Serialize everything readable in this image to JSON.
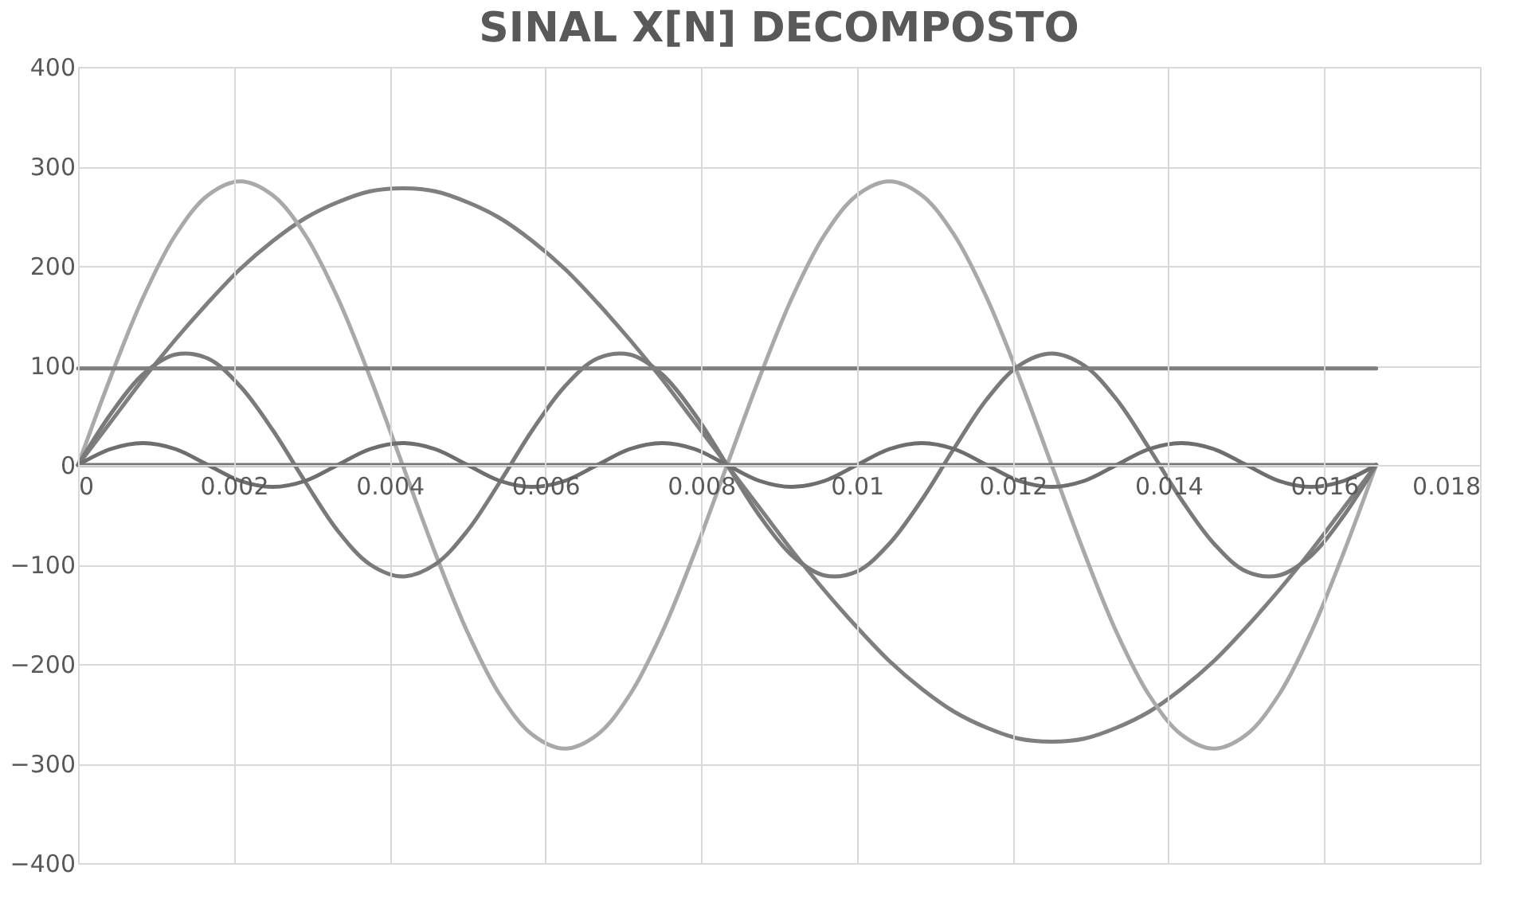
{
  "chart_data": {
    "type": "line",
    "title": "SINAL X[N] DECOMPOSTO",
    "x": [
      0,
      0.000417,
      0.000833,
      0.00125,
      0.001667,
      0.002083,
      0.0025,
      0.002917,
      0.003333,
      0.00375,
      0.004167,
      0.004583,
      0.005,
      0.005417,
      0.005833,
      0.00625,
      0.006667,
      0.007083,
      0.0075,
      0.007917,
      0.008333,
      0.00875,
      0.009167,
      0.009583,
      0.01,
      0.010417,
      0.010833,
      0.01125,
      0.011667,
      0.012083,
      0.0125,
      0.012917,
      0.013333,
      0.01375,
      0.014167,
      0.014583,
      0.015,
      0.015417,
      0.015833,
      0.01625,
      0.016667
    ],
    "series": [
      {
        "color": "#7f7f7f",
        "values": [
          0,
          43,
          86,
          126,
          163,
          197,
          225,
          248,
          264,
          275,
          278,
          275,
          264,
          248,
          225,
          197,
          163,
          126,
          86,
          43,
          0,
          -43,
          -86,
          -126,
          -163,
          -197,
          -225,
          -248,
          -264,
          -275,
          -278,
          -275,
          -264,
          -248,
          -225,
          -197,
          -163,
          -126,
          -86,
          -43,
          0
        ]
      },
      {
        "color": "#a9a9a9",
        "values": [
          0,
          88,
          168,
          231,
          271,
          285,
          271,
          231,
          168,
          88,
          0,
          -88,
          -168,
          -231,
          -271,
          -285,
          -271,
          -231,
          -168,
          -88,
          0,
          88,
          168,
          231,
          271,
          285,
          271,
          231,
          168,
          88,
          0,
          -88,
          -168,
          -231,
          -271,
          -285,
          -271,
          -231,
          -168,
          -88,
          0
        ]
      },
      {
        "color": "#7a7a7a",
        "values": [
          0,
          51,
          91,
          111,
          107,
          79,
          35,
          -17,
          -66,
          -100,
          -112,
          -100,
          -66,
          -17,
          35,
          79,
          107,
          111,
          91,
          51,
          0,
          -51,
          -91,
          -111,
          -107,
          -79,
          -35,
          17,
          66,
          100,
          112,
          100,
          66,
          17,
          -35,
          -79,
          -107,
          -111,
          -91,
          -51,
          0
        ]
      },
      {
        "color": "#6e6e6e",
        "values": [
          0,
          16,
          22,
          16,
          0,
          -16,
          -22,
          -16,
          0,
          16,
          22,
          16,
          0,
          -16,
          -22,
          -16,
          0,
          16,
          22,
          16,
          0,
          -16,
          -22,
          -16,
          0,
          16,
          22,
          16,
          0,
          -16,
          -22,
          -16,
          0,
          16,
          22,
          16,
          0,
          -16,
          -22,
          -16,
          0
        ]
      },
      {
        "color": "#7f7f7f",
        "values": [
          97,
          97,
          97,
          97,
          97,
          97,
          97,
          97,
          97,
          97,
          97,
          97,
          97,
          97,
          97,
          97,
          97,
          97,
          97,
          97,
          97,
          97,
          97,
          97,
          97,
          97,
          97,
          97,
          97,
          97,
          97,
          97,
          97,
          97,
          97,
          97,
          97,
          97,
          97,
          97,
          97
        ]
      },
      {
        "color": "#767676",
        "values": [
          0,
          0,
          0,
          0,
          0,
          0,
          0,
          0,
          0,
          0,
          0,
          0,
          0,
          0,
          0,
          0,
          0,
          0,
          0,
          0,
          0,
          0,
          0,
          0,
          0,
          0,
          0,
          0,
          0,
          0,
          0,
          0,
          0,
          0,
          0,
          0,
          0,
          0,
          0,
          0,
          0
        ]
      }
    ],
    "xlim": [
      0,
      0.018
    ],
    "xticks": [
      0,
      0.002,
      0.004,
      0.006,
      0.008,
      0.01,
      0.012,
      0.014,
      0.016,
      0.018
    ],
    "ylim": [
      -400,
      400
    ],
    "yticks": [
      -400,
      -300,
      -200,
      -100,
      0,
      100,
      200,
      300,
      400
    ],
    "grid": true
  }
}
